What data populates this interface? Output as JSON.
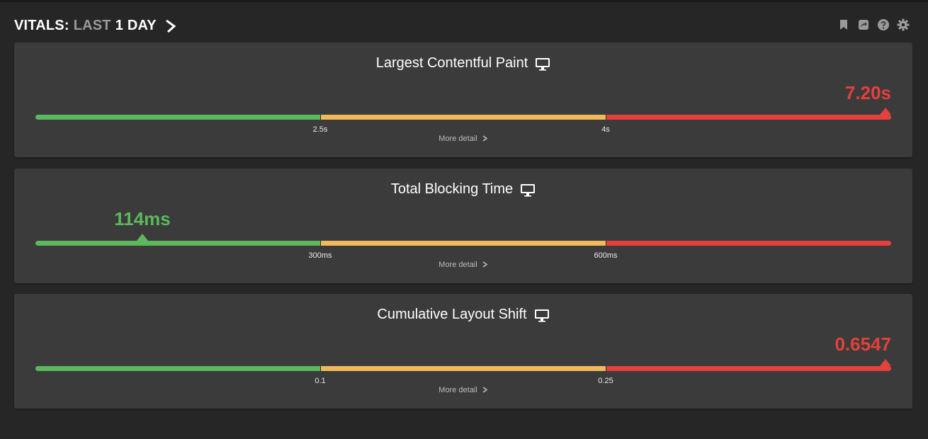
{
  "header": {
    "prefix": "VITALS:",
    "range_label": "LAST",
    "range_value": "1 DAY"
  },
  "toolbar": {
    "icons": [
      "bookmark-icon",
      "share-icon",
      "help-icon",
      "settings-icon"
    ]
  },
  "colors": {
    "good": "#5cb85c",
    "needs_improvement": "#f0b95a",
    "poor": "#e5403b",
    "card_bg": "#3b3b3b",
    "page_bg": "#262626"
  },
  "metrics": [
    {
      "title": "Largest Contentful Paint",
      "device_icon": "desktop-icon",
      "value": "7.20s",
      "status": "poor",
      "thresholds": [
        "2.5s",
        "4s"
      ],
      "marker_position": 1.0,
      "more_label": "More detail"
    },
    {
      "title": "Total Blocking Time",
      "device_icon": "desktop-icon",
      "value": "114ms",
      "status": "good",
      "thresholds": [
        "300ms",
        "600ms"
      ],
      "marker_position": 0.125,
      "more_label": "More detail"
    },
    {
      "title": "Cumulative Layout Shift",
      "device_icon": "desktop-icon",
      "value": "0.6547",
      "status": "poor",
      "thresholds": [
        "0.1",
        "0.25"
      ],
      "marker_position": 1.0,
      "more_label": "More detail"
    }
  ]
}
